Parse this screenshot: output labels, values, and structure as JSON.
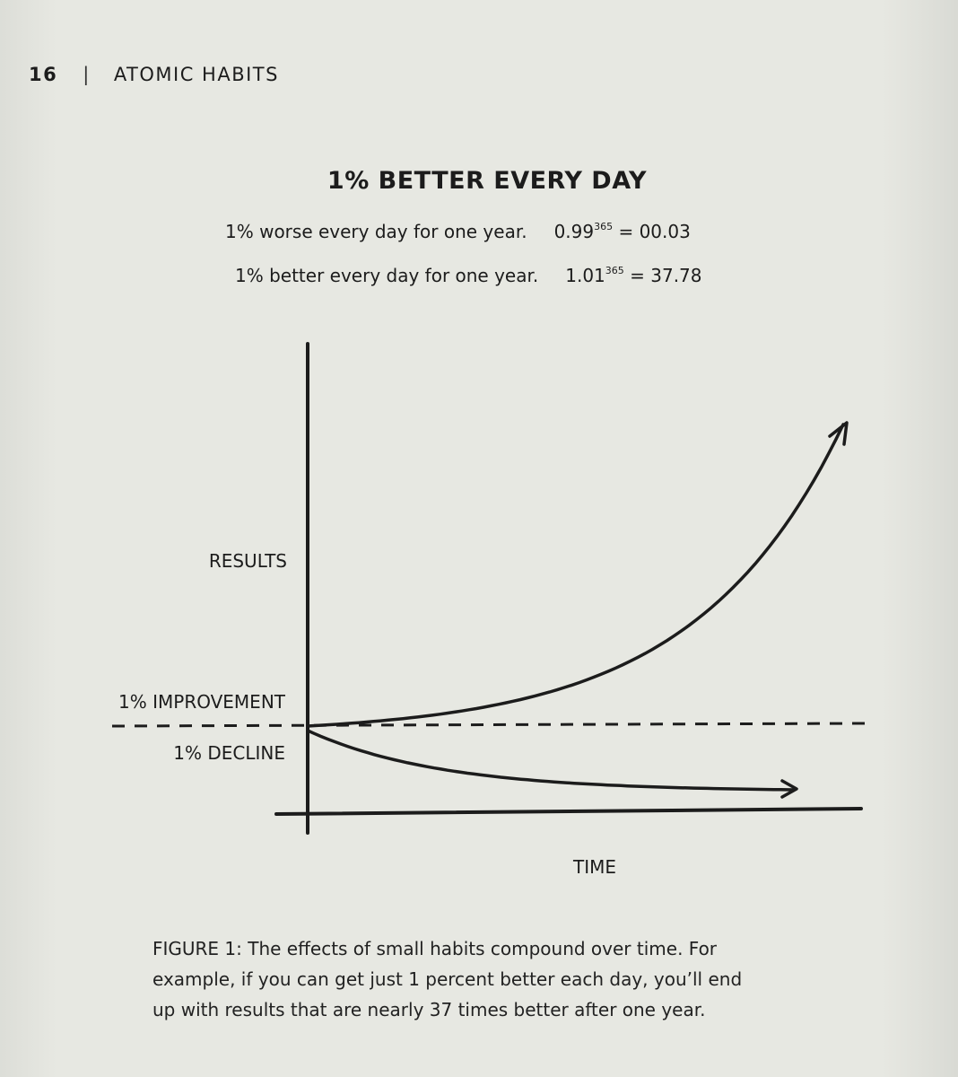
{
  "header": {
    "page_number": "16",
    "separator": "|",
    "book_title": "ATOMIC HABITS"
  },
  "equations": [
    {
      "text": "1% worse every day for one year.",
      "base": "0.99",
      "exponent": "365",
      "result": "= 00.03"
    },
    {
      "text": "1% better every day for one year.",
      "base": "1.01",
      "exponent": "365",
      "result": "= 37.78"
    }
  ],
  "chart_data": {
    "type": "line",
    "title": "1% BETTER EVERY DAY",
    "xlabel": "TIME",
    "ylabel": "RESULTS",
    "baseline_label_above": "1% IMPROVEMENT",
    "baseline_label_below": "1% DECLINE",
    "x_unit": "days",
    "xlim": [
      0,
      365
    ],
    "baseline": 1,
    "series": [
      {
        "name": "1% IMPROVEMENT",
        "daily_rate": 1.01,
        "end_value": 37.78,
        "x": [
          0,
          60,
          120,
          180,
          240,
          300,
          365
        ],
        "values": [
          1,
          1.82,
          3.3,
          6.0,
          10.9,
          19.8,
          37.78
        ]
      },
      {
        "name": "1% DECLINE",
        "daily_rate": 0.99,
        "end_value": 0.03,
        "x": [
          0,
          60,
          120,
          180,
          240,
          300,
          365
        ],
        "values": [
          1,
          0.55,
          0.3,
          0.16,
          0.09,
          0.05,
          0.03
        ]
      }
    ]
  },
  "caption": {
    "lines": [
      "FIGURE 1: The effects of small habits compound over time. For",
      "example, if you can get just 1 percent better each day, you’ll end",
      "up with results that are nearly 37 times better after one year."
    ]
  },
  "colors": {
    "ink": "#1c1c1c",
    "paper": "#e7e8e2"
  }
}
